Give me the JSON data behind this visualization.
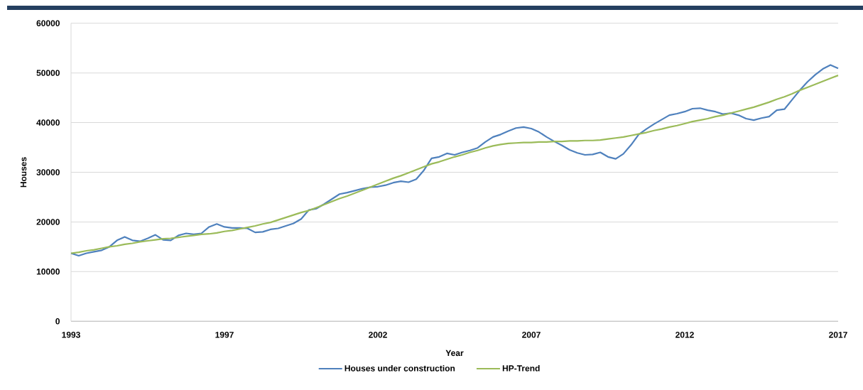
{
  "chart_data": {
    "type": "line",
    "xlabel": "Year",
    "ylabel": "Houses",
    "categories": [
      "1993",
      null,
      null,
      null,
      null,
      null,
      null,
      null,
      null,
      null,
      null,
      null,
      null,
      null,
      null,
      null,
      null,
      null,
      null,
      null,
      "1997",
      null,
      null,
      null,
      null,
      null,
      null,
      null,
      null,
      null,
      null,
      null,
      null,
      null,
      null,
      null,
      null,
      null,
      null,
      null,
      "2002",
      null,
      null,
      null,
      null,
      null,
      null,
      null,
      null,
      null,
      null,
      null,
      null,
      null,
      null,
      null,
      null,
      null,
      null,
      null,
      "2007",
      null,
      null,
      null,
      null,
      null,
      null,
      null,
      null,
      null,
      null,
      null,
      null,
      null,
      null,
      null,
      null,
      null,
      null,
      null,
      "2012",
      null,
      null,
      null,
      null,
      null,
      null,
      null,
      null,
      null,
      null,
      null,
      null,
      null,
      null,
      null,
      null,
      null,
      null,
      null,
      "2017"
    ],
    "series": [
      {
        "name": "Houses under construction",
        "color": "#4f81bd",
        "values": [
          13700,
          13200,
          13700,
          14000,
          14300,
          15000,
          16300,
          17000,
          16300,
          16100,
          16700,
          17400,
          16400,
          16300,
          17300,
          17700,
          17500,
          17700,
          19000,
          19600,
          19000,
          18800,
          18800,
          18700,
          17900,
          18000,
          18500,
          18700,
          19200,
          19700,
          20600,
          22400,
          22700,
          23600,
          24600,
          25600,
          25900,
          26300,
          26700,
          27000,
          27100,
          27400,
          27900,
          28200,
          28000,
          28600,
          30400,
          32800,
          33100,
          33800,
          33500,
          34000,
          34400,
          34900,
          36100,
          37100,
          37600,
          38300,
          38900,
          39100,
          38800,
          38100,
          37100,
          36200,
          35400,
          34500,
          33900,
          33500,
          33600,
          34000,
          33100,
          32700,
          33700,
          35500,
          37600,
          38700,
          39700,
          40600,
          41500,
          41800,
          42200,
          42800,
          42900,
          42500,
          42200,
          41700,
          41900,
          41500,
          40800,
          40500,
          40900,
          41200,
          42500,
          42700,
          44600,
          46500,
          48200,
          49600,
          50800,
          51600,
          50900
        ]
      },
      {
        "name": "HP-Trend",
        "color": "#9bbb59",
        "values": [
          13700,
          13900,
          14200,
          14400,
          14700,
          15000,
          15200,
          15500,
          15700,
          16000,
          16200,
          16400,
          16600,
          16700,
          16900,
          17100,
          17300,
          17500,
          17600,
          17800,
          18100,
          18300,
          18600,
          18900,
          19200,
          19600,
          19900,
          20400,
          20900,
          21400,
          21900,
          22300,
          22900,
          23500,
          24100,
          24700,
          25200,
          25800,
          26400,
          27000,
          27600,
          28200,
          28800,
          29300,
          29900,
          30500,
          31100,
          31700,
          32100,
          32600,
          33100,
          33500,
          34000,
          34400,
          34900,
          35300,
          35600,
          35800,
          35900,
          36000,
          36000,
          36100,
          36100,
          36200,
          36200,
          36300,
          36300,
          36400,
          36400,
          36500,
          36700,
          36900,
          37100,
          37400,
          37700,
          38000,
          38400,
          38700,
          39100,
          39400,
          39800,
          40200,
          40500,
          40800,
          41200,
          41500,
          41900,
          42300,
          42700,
          43100,
          43600,
          44100,
          44700,
          45200,
          45800,
          46500,
          47100,
          47700,
          48300,
          48900,
          49500
        ]
      }
    ],
    "ylim": [
      0,
      60000
    ],
    "yticks": [
      0,
      10000,
      20000,
      30000,
      40000,
      50000,
      60000
    ],
    "grid": "y",
    "legend": "bottom",
    "line_style": "solid"
  }
}
